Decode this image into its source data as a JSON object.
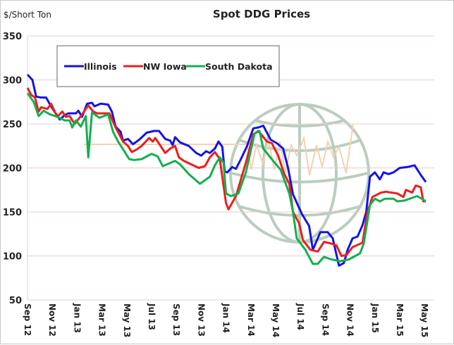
{
  "chart_data": {
    "type": "line",
    "title": "Spot DDG Prices",
    "ylabel": "$/Short Ton",
    "xlabel": "",
    "ylim": [
      50,
      350
    ],
    "yticks": [
      50,
      100,
      150,
      200,
      250,
      300,
      350
    ],
    "x_unit": "months since Sep 2012",
    "xlim": [
      0,
      32.8
    ],
    "xtick_labels": [
      "Sep 12",
      "Nov 12",
      "Jan 13",
      "Mar 13",
      "May 13",
      "Jul 13",
      "Sep 13",
      "Nov 13",
      "Jan 14",
      "Mar 14",
      "May 14",
      "Jul 14",
      "Sep 14",
      "Nov 14",
      "Jan 15",
      "Mar 15",
      "May 15"
    ],
    "xtick_positions": [
      0,
      2,
      4,
      6,
      8,
      10,
      12,
      14,
      16,
      18,
      20,
      22,
      24,
      26,
      28,
      30,
      32
    ],
    "grid": true,
    "legend_placement": "top-left",
    "series": [
      {
        "name": "Illinois",
        "color": "#1414e6",
        "points": [
          [
            0,
            306
          ],
          [
            0.4,
            300
          ],
          [
            0.7,
            281
          ],
          [
            1.1,
            280
          ],
          [
            1.5,
            280
          ],
          [
            1.9,
            270
          ],
          [
            2.6,
            255
          ],
          [
            3,
            260
          ],
          [
            3.3,
            262
          ],
          [
            3.9,
            262
          ],
          [
            4.1,
            265
          ],
          [
            4.4,
            258
          ],
          [
            4.8,
            273
          ],
          [
            5.2,
            274
          ],
          [
            5.4,
            270
          ],
          [
            5.9,
            273
          ],
          [
            6.5,
            272
          ],
          [
            6.8,
            264
          ],
          [
            7.1,
            247
          ],
          [
            7.5,
            241
          ],
          [
            7.7,
            231
          ],
          [
            8.1,
            233
          ],
          [
            8.5,
            227
          ],
          [
            9,
            232
          ],
          [
            9.6,
            240
          ],
          [
            10.2,
            242
          ],
          [
            10.6,
            242
          ],
          [
            11.1,
            233
          ],
          [
            11.5,
            231
          ],
          [
            11.7,
            226
          ],
          [
            11.9,
            235
          ],
          [
            12.3,
            229
          ],
          [
            13,
            225
          ],
          [
            13.6,
            217
          ],
          [
            14,
            214
          ],
          [
            14.4,
            219
          ],
          [
            14.7,
            217
          ],
          [
            15.1,
            222
          ],
          [
            15.4,
            230
          ],
          [
            15.7,
            224
          ],
          [
            15.9,
            196
          ],
          [
            16.1,
            195
          ],
          [
            16.5,
            201
          ],
          [
            16.8,
            199
          ],
          [
            17.2,
            210
          ],
          [
            17.7,
            225
          ],
          [
            18.2,
            245
          ],
          [
            18.6,
            246
          ],
          [
            19,
            248
          ],
          [
            19.6,
            232
          ],
          [
            20.1,
            228
          ],
          [
            20.6,
            222
          ],
          [
            21,
            200
          ],
          [
            21.4,
            170
          ],
          [
            22.1,
            148
          ],
          [
            22.7,
            134
          ],
          [
            23,
            107
          ],
          [
            23.6,
            127
          ],
          [
            24.2,
            127
          ],
          [
            24.6,
            120
          ],
          [
            25.1,
            89
          ],
          [
            25.5,
            92
          ],
          [
            25.8,
            107
          ],
          [
            26.2,
            120
          ],
          [
            26.6,
            122
          ],
          [
            27,
            135
          ],
          [
            27.3,
            150
          ],
          [
            27.6,
            190
          ],
          [
            28,
            195
          ],
          [
            28.4,
            187
          ],
          [
            28.7,
            195
          ],
          [
            29.1,
            193
          ],
          [
            29.5,
            195
          ],
          [
            30,
            200
          ],
          [
            30.6,
            201
          ],
          [
            31.2,
            203
          ],
          [
            31.7,
            192
          ],
          [
            32.1,
            184
          ]
        ]
      },
      {
        "name": "NW Iowa",
        "color": "#f01c1c",
        "points": [
          [
            0,
            291
          ],
          [
            0.3,
            283
          ],
          [
            0.6,
            280
          ],
          [
            0.9,
            264
          ],
          [
            1.1,
            269
          ],
          [
            1.6,
            267
          ],
          [
            1.9,
            273
          ],
          [
            2.4,
            258
          ],
          [
            2.8,
            264
          ],
          [
            3.1,
            258
          ],
          [
            3.4,
            259
          ],
          [
            3.8,
            250
          ],
          [
            4.3,
            259
          ],
          [
            4.9,
            271
          ],
          [
            5.3,
            264
          ],
          [
            5.6,
            262
          ],
          [
            6.6,
            262
          ],
          [
            7.1,
            246
          ],
          [
            7.7,
            230
          ],
          [
            8.1,
            225
          ],
          [
            8.4,
            218
          ],
          [
            8.8,
            221
          ],
          [
            9.2,
            225
          ],
          [
            9.8,
            234
          ],
          [
            10.1,
            230
          ],
          [
            10.3,
            234
          ],
          [
            11.1,
            217
          ],
          [
            11.5,
            222
          ],
          [
            11.9,
            225
          ],
          [
            12.2,
            212
          ],
          [
            12.6,
            208
          ],
          [
            13.2,
            204
          ],
          [
            13.8,
            200
          ],
          [
            14.3,
            202
          ],
          [
            14.7,
            212
          ],
          [
            15.1,
            218
          ],
          [
            15.5,
            210
          ],
          [
            16,
            160
          ],
          [
            16.2,
            153
          ],
          [
            16.8,
            168
          ],
          [
            17.6,
            206
          ],
          [
            18.2,
            238
          ],
          [
            18.6,
            242
          ],
          [
            19.3,
            230
          ],
          [
            19.7,
            228
          ],
          [
            20.2,
            214
          ],
          [
            20.7,
            193
          ],
          [
            21.1,
            182
          ],
          [
            21.4,
            150
          ],
          [
            21.9,
            137
          ],
          [
            22.2,
            118
          ],
          [
            22.8,
            107
          ],
          [
            23.4,
            105
          ],
          [
            23.9,
            116
          ],
          [
            24.5,
            114
          ],
          [
            24.9,
            112
          ],
          [
            25.3,
            100
          ],
          [
            25.7,
            101
          ],
          [
            26.2,
            110
          ],
          [
            27,
            115
          ],
          [
            27.4,
            150
          ],
          [
            27.8,
            167
          ],
          [
            28.5,
            172
          ],
          [
            28.9,
            173
          ],
          [
            29.8,
            171
          ],
          [
            30.3,
            167
          ],
          [
            30.5,
            175
          ],
          [
            31,
            172
          ],
          [
            31.3,
            180
          ],
          [
            31.7,
            178
          ],
          [
            31.9,
            162
          ],
          [
            32.1,
            162
          ]
        ]
      },
      {
        "name": "South Dakota",
        "color": "#12b050",
        "points": [
          [
            0,
            285
          ],
          [
            0.5,
            275
          ],
          [
            0.9,
            259
          ],
          [
            1.3,
            265
          ],
          [
            1.8,
            261
          ],
          [
            2.4,
            258
          ],
          [
            3,
            254
          ],
          [
            3.4,
            254
          ],
          [
            3.6,
            246
          ],
          [
            3.9,
            254
          ],
          [
            4.3,
            247
          ],
          [
            4.7,
            259
          ],
          [
            4.9,
            212
          ],
          [
            5.2,
            263
          ],
          [
            5.8,
            257
          ],
          [
            6.5,
            261
          ],
          [
            6.9,
            241
          ],
          [
            7.3,
            230
          ],
          [
            7.8,
            219
          ],
          [
            8.2,
            210
          ],
          [
            8.6,
            209
          ],
          [
            9.2,
            210
          ],
          [
            10,
            216
          ],
          [
            10.5,
            213
          ],
          [
            10.9,
            202
          ],
          [
            11.9,
            208
          ],
          [
            12.3,
            204
          ],
          [
            13,
            193
          ],
          [
            13.9,
            182
          ],
          [
            14.3,
            186
          ],
          [
            14.7,
            190
          ],
          [
            15.1,
            203
          ],
          [
            15.5,
            212
          ],
          [
            15.8,
            206
          ],
          [
            16,
            171
          ],
          [
            16.4,
            168
          ],
          [
            17,
            171
          ],
          [
            17.6,
            195
          ],
          [
            18.3,
            239
          ],
          [
            18.7,
            242
          ],
          [
            19,
            222
          ],
          [
            19.8,
            208
          ],
          [
            20.4,
            198
          ],
          [
            21.1,
            171
          ],
          [
            21.4,
            150
          ],
          [
            21.7,
            120
          ],
          [
            22.4,
            107
          ],
          [
            23,
            91
          ],
          [
            23.4,
            91
          ],
          [
            23.9,
            99
          ],
          [
            24.5,
            96
          ],
          [
            25.2,
            94
          ],
          [
            25.9,
            96
          ],
          [
            26.8,
            103
          ],
          [
            27.1,
            114
          ],
          [
            27.6,
            158
          ],
          [
            28,
            165
          ],
          [
            28.4,
            162
          ],
          [
            28.8,
            165
          ],
          [
            29.5,
            165
          ],
          [
            29.8,
            162
          ],
          [
            30.4,
            163
          ],
          [
            31.4,
            168
          ],
          [
            31.9,
            164
          ],
          [
            32.1,
            162
          ]
        ]
      }
    ]
  }
}
